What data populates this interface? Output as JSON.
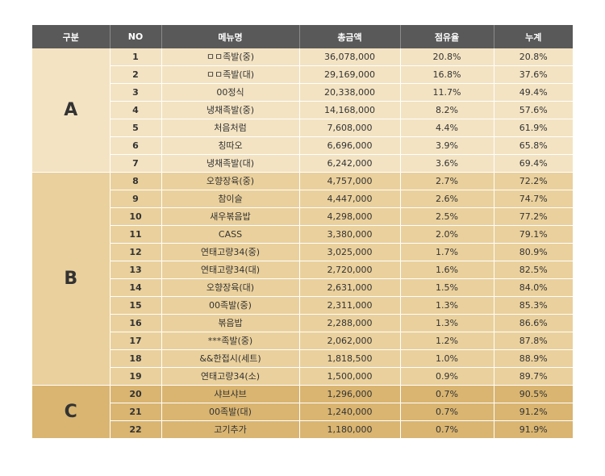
{
  "headers": [
    "구분",
    "NO",
    "메뉴명",
    "총금액",
    "점유율",
    "누계"
  ],
  "groups": [
    {
      "label": "A",
      "rows": [
        {
          "no": "1",
          "menu": "ㅁㅁ족발(중)",
          "total": "36,078,000",
          "share": "20.8%",
          "cumulative": "20.8%"
        },
        {
          "no": "2",
          "menu": "ㅁㅁ족발(대)",
          "total": "29,169,000",
          "share": "16.8%",
          "cumulative": "37.6%"
        },
        {
          "no": "3",
          "menu": "00정식",
          "total": "20,338,000",
          "share": "11.7%",
          "cumulative": "49.4%"
        },
        {
          "no": "4",
          "menu": "냉채족발(중)",
          "total": "14,168,000",
          "share": "8.2%",
          "cumulative": "57.6%"
        },
        {
          "no": "5",
          "menu": "처음처럼",
          "total": "7,608,000",
          "share": "4.4%",
          "cumulative": "61.9%"
        },
        {
          "no": "6",
          "menu": "칭따오",
          "total": "6,696,000",
          "share": "3.9%",
          "cumulative": "65.8%"
        },
        {
          "no": "7",
          "menu": "냉채족발(대)",
          "total": "6,242,000",
          "share": "3.6%",
          "cumulative": "69.4%"
        }
      ]
    },
    {
      "label": "B",
      "rows": [
        {
          "no": "8",
          "menu": "오향장육(중)",
          "total": "4,757,000",
          "share": "2.7%",
          "cumulative": "72.2%"
        },
        {
          "no": "9",
          "menu": "참이슬",
          "total": "4,447,000",
          "share": "2.6%",
          "cumulative": "74.7%"
        },
        {
          "no": "10",
          "menu": "새우볶음밥",
          "total": "4,298,000",
          "share": "2.5%",
          "cumulative": "77.2%"
        },
        {
          "no": "11",
          "menu": "CASS",
          "total": "3,380,000",
          "share": "2.0%",
          "cumulative": "79.1%"
        },
        {
          "no": "12",
          "menu": "연태고량34(중)",
          "total": "3,025,000",
          "share": "1.7%",
          "cumulative": "80.9%"
        },
        {
          "no": "13",
          "menu": "연태고량34(대)",
          "total": "2,720,000",
          "share": "1.6%",
          "cumulative": "82.5%"
        },
        {
          "no": "14",
          "menu": "오향장육(대)",
          "total": "2,631,000",
          "share": "1.5%",
          "cumulative": "84.0%"
        },
        {
          "no": "15",
          "menu": "00족발(중)",
          "total": "2,311,000",
          "share": "1.3%",
          "cumulative": "85.3%"
        },
        {
          "no": "16",
          "menu": "볶음밥",
          "total": "2,288,000",
          "share": "1.3%",
          "cumulative": "86.6%"
        },
        {
          "no": "17",
          "menu": "***족발(중)",
          "total": "2,062,000",
          "share": "1.2%",
          "cumulative": "87.8%"
        },
        {
          "no": "18",
          "menu": "&&한접시(세트)",
          "total": "1,818,500",
          "share": "1.0%",
          "cumulative": "88.9%"
        },
        {
          "no": "19",
          "menu": "연태고량34(소)",
          "total": "1,500,000",
          "share": "0.9%",
          "cumulative": "89.7%"
        }
      ]
    },
    {
      "label": "C",
      "rows": [
        {
          "no": "20",
          "menu": "샤브샤브",
          "total": "1,296,000",
          "share": "0.7%",
          "cumulative": "90.5%"
        },
        {
          "no": "21",
          "menu": "00족발(대)",
          "total": "1,240,000",
          "share": "0.7%",
          "cumulative": "91.2%"
        },
        {
          "no": "22",
          "menu": "고기추가",
          "total": "1,180,000",
          "share": "0.7%",
          "cumulative": "91.9%"
        }
      ]
    }
  ],
  "colors": {
    "header_bg": "#595959",
    "group_A_bg": "#f3e3c2",
    "group_B_bg": "#ead09c",
    "group_C_bg": "#d9b571"
  }
}
